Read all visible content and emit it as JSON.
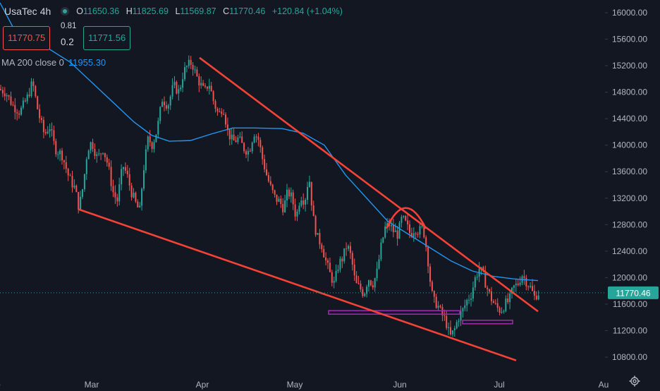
{
  "header": {
    "symbol": "UsaTec",
    "timeframe": "4h",
    "ohlc": {
      "o_label": "O",
      "o": "11650.36",
      "h_label": "H",
      "h": "11825.69",
      "l_label": "L",
      "l": "11569.87",
      "c_label": "C",
      "c": "11770.46",
      "change": "+120.84 (+1.04%)"
    },
    "sell_price": "11770.75",
    "buy_price": "11771.56",
    "spread_top": "0.81",
    "spread_bottom": "0.2",
    "ma_label": "MA 200 close 0",
    "ma_value": "11955.30"
  },
  "colors": {
    "background": "#131722",
    "up": "#26a69a",
    "down": "#ef5350",
    "ma": "#2196f3",
    "trendline": "#f44336",
    "support": "#9c27b0",
    "axis_text": "#b2b5be"
  },
  "chart_data": {
    "type": "candlestick",
    "x_labels": [
      "eb",
      "Mar",
      "Apr",
      "May",
      "Jun",
      "Jul",
      "Au"
    ],
    "y_ticks": [
      "16000.00",
      "15600.00",
      "15200.00",
      "14800.00",
      "14400.00",
      "14000.00",
      "13600.00",
      "13200.00",
      "12800.00",
      "12400.00",
      "12000.00",
      "11600.00",
      "11200.00",
      "10800.00"
    ],
    "ylim": [
      10650,
      16150
    ],
    "x_domain": [
      0,
      935
    ],
    "last_price": 11770.46,
    "last_price_label": "11770.46",
    "price_path": [
      [
        0,
        14850
      ],
      [
        10,
        14800
      ],
      [
        20,
        14600
      ],
      [
        30,
        14500
      ],
      [
        40,
        14700
      ],
      [
        48,
        14950
      ],
      [
        56,
        14500
      ],
      [
        65,
        14150
      ],
      [
        72,
        14300
      ],
      [
        80,
        13950
      ],
      [
        90,
        13850
      ],
      [
        100,
        13500
      ],
      [
        108,
        13350
      ],
      [
        114,
        13050
      ],
      [
        120,
        13400
      ],
      [
        126,
        13950
      ],
      [
        132,
        14050
      ],
      [
        140,
        13800
      ],
      [
        148,
        13950
      ],
      [
        155,
        13700
      ],
      [
        162,
        13300
      ],
      [
        168,
        13150
      ],
      [
        176,
        13700
      ],
      [
        182,
        13550
      ],
      [
        188,
        13300
      ],
      [
        195,
        13100
      ],
      [
        200,
        13000
      ],
      [
        205,
        13600
      ],
      [
        212,
        14100
      ],
      [
        218,
        14000
      ],
      [
        225,
        14250
      ],
      [
        232,
        14700
      ],
      [
        240,
        14600
      ],
      [
        248,
        14900
      ],
      [
        256,
        14800
      ],
      [
        262,
        15100
      ],
      [
        268,
        15200
      ],
      [
        274,
        15250
      ],
      [
        280,
        15050
      ],
      [
        287,
        14900
      ],
      [
        292,
        14800
      ],
      [
        298,
        14950
      ],
      [
        305,
        14650
      ],
      [
        312,
        14450
      ],
      [
        318,
        14600
      ],
      [
        325,
        14200
      ],
      [
        332,
        14050
      ],
      [
        340,
        14100
      ],
      [
        348,
        13950
      ],
      [
        355,
        13900
      ],
      [
        362,
        14200
      ],
      [
        368,
        14100
      ],
      [
        374,
        13800
      ],
      [
        380,
        13550
      ],
      [
        386,
        13350
      ],
      [
        392,
        13200
      ],
      [
        398,
        13150
      ],
      [
        404,
        13050
      ],
      [
        410,
        13300
      ],
      [
        416,
        13200
      ],
      [
        422,
        12900
      ],
      [
        428,
        13250
      ],
      [
        434,
        13150
      ],
      [
        440,
        13550
      ],
      [
        446,
        12900
      ],
      [
        452,
        12600
      ],
      [
        458,
        12500
      ],
      [
        464,
        12250
      ],
      [
        470,
        12050
      ],
      [
        476,
        11900
      ],
      [
        482,
        12200
      ],
      [
        488,
        12300
      ],
      [
        494,
        12500
      ],
      [
        500,
        12300
      ],
      [
        506,
        11900
      ],
      [
        512,
        11850
      ],
      [
        518,
        11750
      ],
      [
        524,
        12000
      ],
      [
        530,
        11900
      ],
      [
        536,
        12050
      ],
      [
        542,
        12450
      ],
      [
        548,
        12750
      ],
      [
        554,
        12800
      ],
      [
        560,
        12700
      ],
      [
        566,
        12650
      ],
      [
        572,
        12900
      ],
      [
        578,
        12800
      ],
      [
        584,
        12650
      ],
      [
        590,
        12750
      ],
      [
        596,
        12700
      ],
      [
        602,
        12750
      ],
      [
        608,
        12350
      ],
      [
        612,
        11950
      ],
      [
        616,
        11650
      ],
      [
        622,
        11600
      ],
      [
        628,
        11450
      ],
      [
        634,
        11350
      ],
      [
        640,
        11100
      ],
      [
        646,
        11200
      ],
      [
        652,
        11400
      ],
      [
        658,
        11500
      ],
      [
        664,
        11650
      ],
      [
        670,
        11750
      ],
      [
        676,
        12000
      ],
      [
        682,
        12150
      ],
      [
        688,
        12000
      ],
      [
        694,
        11800
      ],
      [
        700,
        11650
      ],
      [
        706,
        11550
      ],
      [
        712,
        11500
      ],
      [
        718,
        11600
      ],
      [
        724,
        11650
      ],
      [
        730,
        11850
      ],
      [
        736,
        11900
      ],
      [
        742,
        12050
      ],
      [
        748,
        11950
      ],
      [
        754,
        11850
      ],
      [
        760,
        11700
      ],
      [
        764,
        11770
      ]
    ],
    "ma_path": [
      [
        0,
        16150
      ],
      [
        20,
        15750
      ],
      [
        40,
        15600
      ],
      [
        70,
        15450
      ],
      [
        100,
        15250
      ],
      [
        130,
        14950
      ],
      [
        160,
        14650
      ],
      [
        190,
        14350
      ],
      [
        215,
        14150
      ],
      [
        240,
        14060
      ],
      [
        270,
        14070
      ],
      [
        300,
        14170
      ],
      [
        330,
        14260
      ],
      [
        360,
        14260
      ],
      [
        400,
        14250
      ],
      [
        430,
        14180
      ],
      [
        460,
        14000
      ],
      [
        490,
        13550
      ],
      [
        520,
        13200
      ],
      [
        550,
        12850
      ],
      [
        580,
        12650
      ],
      [
        610,
        12450
      ],
      [
        640,
        12250
      ],
      [
        670,
        12100
      ],
      [
        700,
        12020
      ],
      [
        730,
        11980
      ],
      [
        763,
        11955
      ]
    ],
    "trendlines": [
      [
        [
          283,
          15320
        ],
        [
          763,
          11490
        ]
      ],
      [
        [
          112,
          13030
        ],
        [
          732,
          10750
        ]
      ]
    ],
    "arc": [
      [
        548,
        12740
      ],
      [
        575,
        12960
      ],
      [
        604,
        12740
      ]
    ],
    "support_zones": [
      [
        [
          466,
          11475
        ],
        [
          652,
          11475
        ]
      ],
      [
        [
          656,
          11330
        ],
        [
          727,
          11330
        ]
      ]
    ]
  }
}
